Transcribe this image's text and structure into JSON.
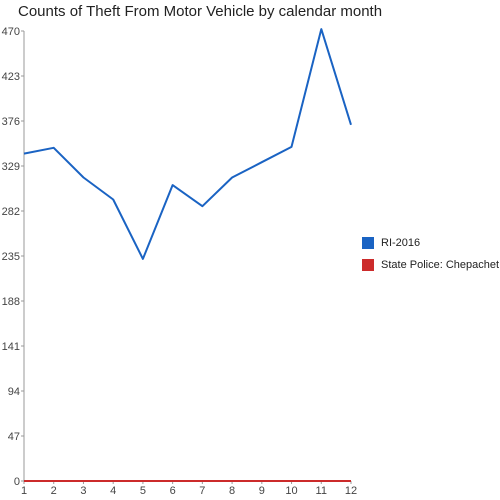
{
  "chart_data": {
    "type": "line",
    "title": "Counts of Theft From Motor Vehicle by calendar month",
    "xlabel": "",
    "ylabel": "",
    "x": [
      1,
      2,
      3,
      4,
      5,
      6,
      7,
      8,
      9,
      10,
      11,
      12
    ],
    "x_tick_labels": [
      "1",
      "2",
      "3",
      "4",
      "5",
      "6",
      "7",
      "8",
      "9",
      "10",
      "11",
      "12"
    ],
    "y_ticks": [
      0,
      47,
      94,
      141,
      188,
      235,
      282,
      329,
      376,
      423,
      470
    ],
    "y_tick_labels": [
      "0",
      "47",
      "94",
      "141",
      "188",
      "235",
      "282",
      "329",
      "376",
      "423",
      "470"
    ],
    "ylim": [
      0,
      470
    ],
    "grid": false,
    "legend_position": "right",
    "series": [
      {
        "name": "RI-2016",
        "color": "#1a63c3",
        "values": [
          342,
          348,
          317,
          294,
          232,
          309,
          287,
          317,
          333,
          349,
          472,
          372
        ]
      },
      {
        "name": "State Police: Chepachet",
        "color": "#cc2b2b",
        "values": [
          0,
          0,
          0,
          0,
          0,
          0,
          0,
          0,
          0,
          0,
          0,
          0
        ]
      }
    ]
  }
}
